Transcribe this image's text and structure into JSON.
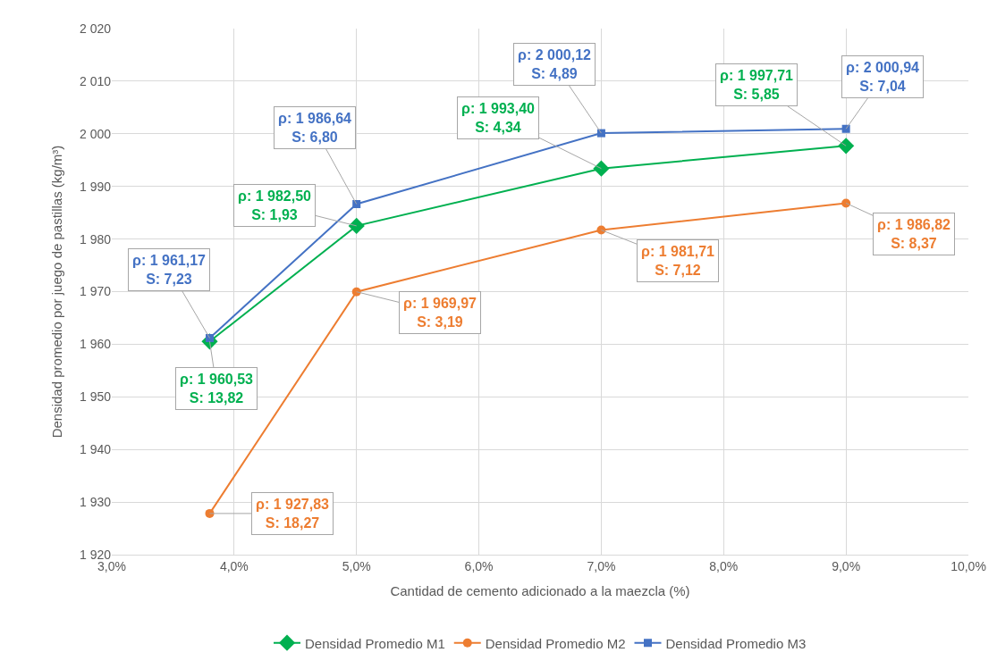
{
  "chart_data": {
    "type": "line",
    "xlabel": "Cantidad de cemento adicionado a la maezcla (%)",
    "ylabel": "Densidad promedio por juego de pastillas (kg/m³)",
    "x": [
      3.8,
      5,
      7,
      9
    ],
    "series": [
      {
        "name": "Densidad Promedio M1",
        "color": "#00b050",
        "marker": "diamond",
        "values": [
          1960.53,
          1982.5,
          1993.4,
          1997.71
        ]
      },
      {
        "name": "Densidad Promedio M2",
        "color": "#ed7d31",
        "marker": "circle",
        "values": [
          1927.83,
          1969.97,
          1981.71,
          1986.82
        ]
      },
      {
        "name": "Densidad Promedio M3",
        "color": "#4472c4",
        "marker": "square",
        "values": [
          1961.17,
          1986.64,
          2000.12,
          2000.94
        ]
      }
    ],
    "xlim": [
      3,
      10
    ],
    "xticks": [
      {
        "value": 3,
        "label": "3,0%"
      },
      {
        "value": 4,
        "label": "4,0%"
      },
      {
        "value": 5,
        "label": "5,0%"
      },
      {
        "value": 6,
        "label": "6,0%"
      },
      {
        "value": 7,
        "label": "7,0%"
      },
      {
        "value": 8,
        "label": "8,0%"
      },
      {
        "value": 9,
        "label": "9,0%"
      },
      {
        "value": 10,
        "label": "10,0%"
      }
    ],
    "ylim": [
      1920,
      2020
    ],
    "yticks": [
      {
        "value": 1920,
        "label": "1 920"
      },
      {
        "value": 1930,
        "label": "1 930"
      },
      {
        "value": 1940,
        "label": "1 940"
      },
      {
        "value": 1950,
        "label": "1 950"
      },
      {
        "value": 1960,
        "label": "1 960"
      },
      {
        "value": 1970,
        "label": "1 970"
      },
      {
        "value": 1980,
        "label": "1 980"
      },
      {
        "value": 1990,
        "label": "1 990"
      },
      {
        "value": 2000,
        "label": "2 000"
      },
      {
        "value": 2010,
        "label": "2 010"
      },
      {
        "value": 2020,
        "label": "2 020"
      }
    ],
    "annotations": [
      {
        "text": "ρ: 1 960,53\nS: 13,82",
        "x": 3.8,
        "y": 1960.53
      },
      {
        "text": "ρ: 1 982,50\nS: 1,93",
        "x": 5,
        "y": 1982.5
      },
      {
        "text": "ρ: 1 993,40\nS: 4,34",
        "x": 7,
        "y": 1993.4
      },
      {
        "text": "ρ: 1 997,71\nS: 5,85",
        "x": 9,
        "y": 1997.71
      },
      {
        "text": "ρ: 1 927,83\nS: 18,27",
        "x": 3.8,
        "y": 1927.83
      },
      {
        "text": "ρ: 1 969,97\nS: 3,19",
        "x": 5,
        "y": 1969.97
      },
      {
        "text": "ρ: 1 981,71\nS: 7,12",
        "x": 7,
        "y": 1981.71
      },
      {
        "text": "ρ: 1 986,82\nS: 8,37",
        "x": 9,
        "y": 1986.82
      },
      {
        "text": "ρ: 1 961,17\nS: 7,23",
        "x": 3.8,
        "y": 1961.17
      },
      {
        "text": "ρ: 1 986,64\nS: 6,80",
        "x": 5,
        "y": 1986.64
      },
      {
        "text": "ρ: 2 000,12\nS: 4,89",
        "x": 7,
        "y": 2000.12
      },
      {
        "text": "ρ: 2 000,94\nS: 7,04",
        "x": 9,
        "y": 2000.94
      }
    ],
    "grid": true,
    "legend": "bottom",
    "line_style": "solid"
  }
}
